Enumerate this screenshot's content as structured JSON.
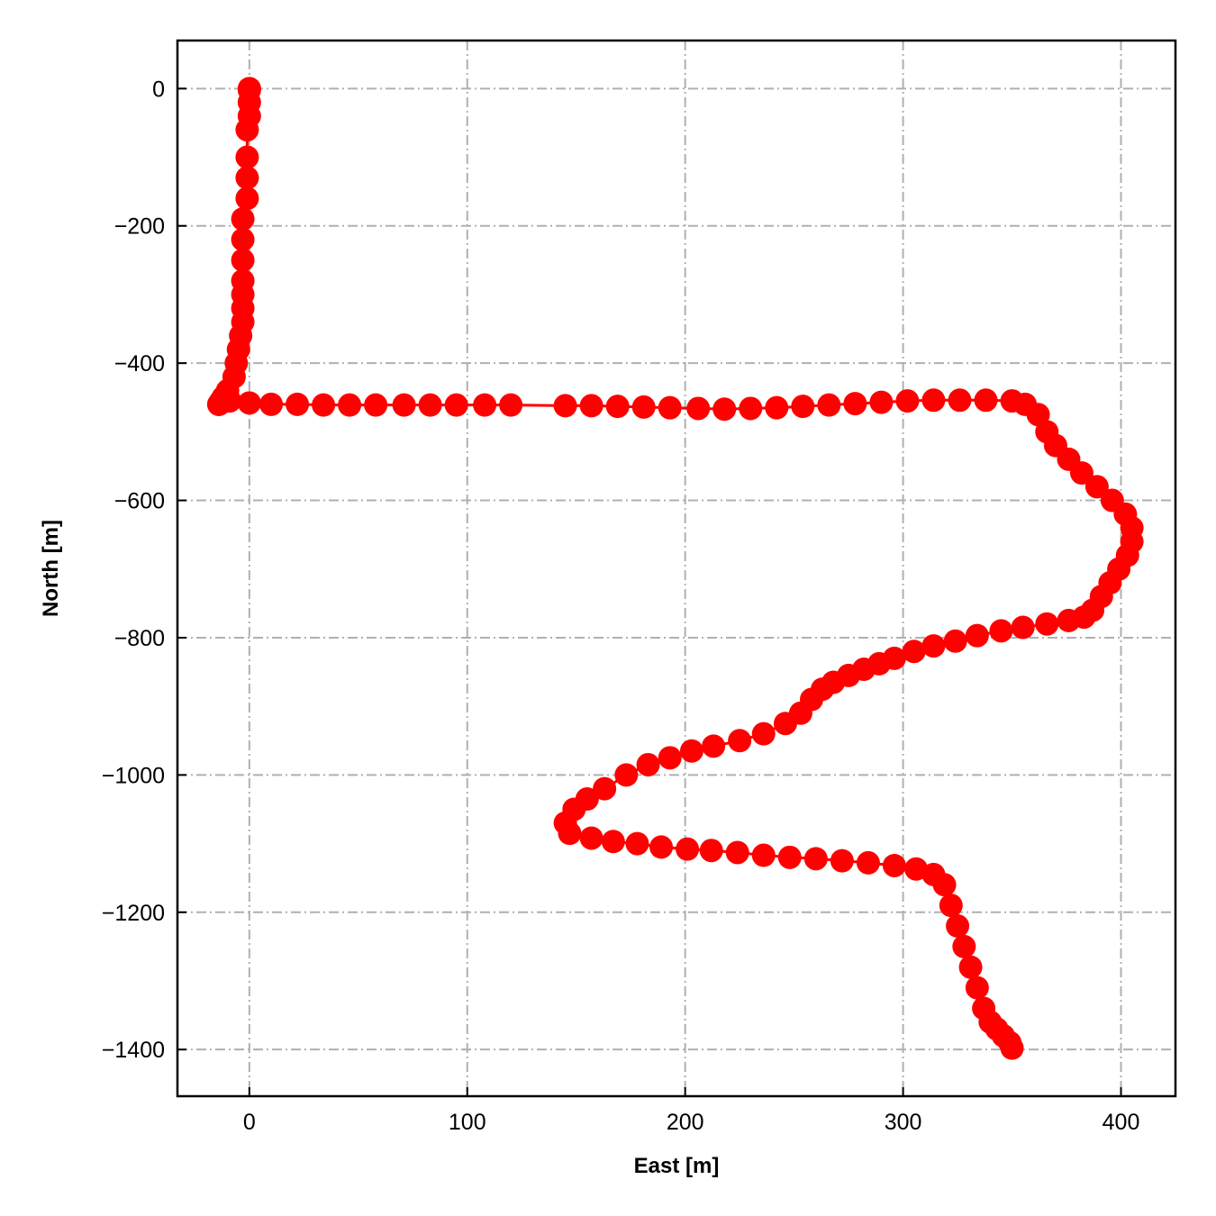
{
  "chart_data": {
    "type": "line",
    "title": "",
    "xlabel": "East [m]",
    "ylabel": "North [m]",
    "xlim": [
      -33,
      425
    ],
    "ylim": [
      -1468,
      70
    ],
    "xticks": [
      0,
      100,
      200,
      300,
      400
    ],
    "yticks": [
      0,
      -200,
      -400,
      -600,
      -800,
      -1000,
      -1200,
      -1400
    ],
    "xtick_labels": [
      "0",
      "100",
      "200",
      "300",
      "400"
    ],
    "ytick_labels": [
      "0",
      "−200",
      "−400",
      "−600",
      "−800",
      "−1000",
      "−1200",
      "−1400"
    ],
    "grid": true,
    "series": [
      {
        "color": "#ff0000",
        "marker": "circle",
        "x": [
          0,
          0,
          0,
          0,
          -1,
          -1,
          -1,
          -1,
          -3,
          -3,
          -3,
          -3,
          -3,
          -3,
          -3,
          -4,
          -5,
          -6,
          -7,
          -10,
          -12,
          -13,
          -13,
          -14,
          -14,
          -13,
          -9,
          0,
          10,
          22,
          34,
          46,
          58,
          71,
          83,
          95,
          108,
          120,
          145,
          157,
          169,
          181,
          193,
          206,
          218,
          230,
          242,
          254,
          266,
          278,
          290,
          302,
          314,
          326,
          338,
          350,
          356,
          362,
          366,
          370,
          376,
          382,
          389,
          396,
          402,
          405,
          405,
          403,
          399,
          395,
          391,
          387,
          383,
          376,
          366,
          355,
          345,
          334,
          324,
          314,
          305,
          296,
          289,
          282,
          275,
          268,
          263,
          258,
          253,
          246,
          236,
          225,
          213,
          203,
          193,
          183,
          173,
          163,
          155,
          149,
          145,
          147,
          157,
          167,
          178,
          189,
          201,
          212,
          224,
          236,
          248,
          260,
          272,
          284,
          296,
          306,
          314,
          319,
          322,
          325,
          328,
          331,
          334,
          337,
          340,
          343,
          346,
          349,
          350
        ],
        "y": [
          0,
          -2,
          -20,
          -40,
          -60,
          -100,
          -130,
          -160,
          -190,
          -220,
          -250,
          -280,
          -300,
          -320,
          -340,
          -360,
          -380,
          -400,
          -420,
          -440,
          -450,
          -455,
          -458,
          -460,
          -460,
          -458,
          -455,
          -458,
          -460,
          -460,
          -461,
          -461,
          -461,
          -461,
          -461,
          -461,
          -461,
          -461,
          -462,
          -462,
          -463,
          -464,
          -465,
          -466,
          -467,
          -466,
          -465,
          -463,
          -461,
          -459,
          -457,
          -455,
          -454,
          -454,
          -454,
          -455,
          -460,
          -475,
          -500,
          -520,
          -540,
          -560,
          -580,
          -600,
          -620,
          -640,
          -660,
          -680,
          -700,
          -720,
          -740,
          -760,
          -770,
          -775,
          -780,
          -785,
          -790,
          -797,
          -805,
          -812,
          -820,
          -830,
          -838,
          -846,
          -855,
          -865,
          -875,
          -890,
          -910,
          -925,
          -940,
          -950,
          -958,
          -965,
          -975,
          -985,
          -1000,
          -1020,
          -1035,
          -1050,
          -1070,
          -1085,
          -1092,
          -1097,
          -1100,
          -1105,
          -1108,
          -1110,
          -1113,
          -1117,
          -1120,
          -1122,
          -1125,
          -1128,
          -1132,
          -1137,
          -1145,
          -1160,
          -1190,
          -1220,
          -1250,
          -1280,
          -1310,
          -1340,
          -1360,
          -1370,
          -1380,
          -1390,
          -1398
        ]
      }
    ]
  }
}
